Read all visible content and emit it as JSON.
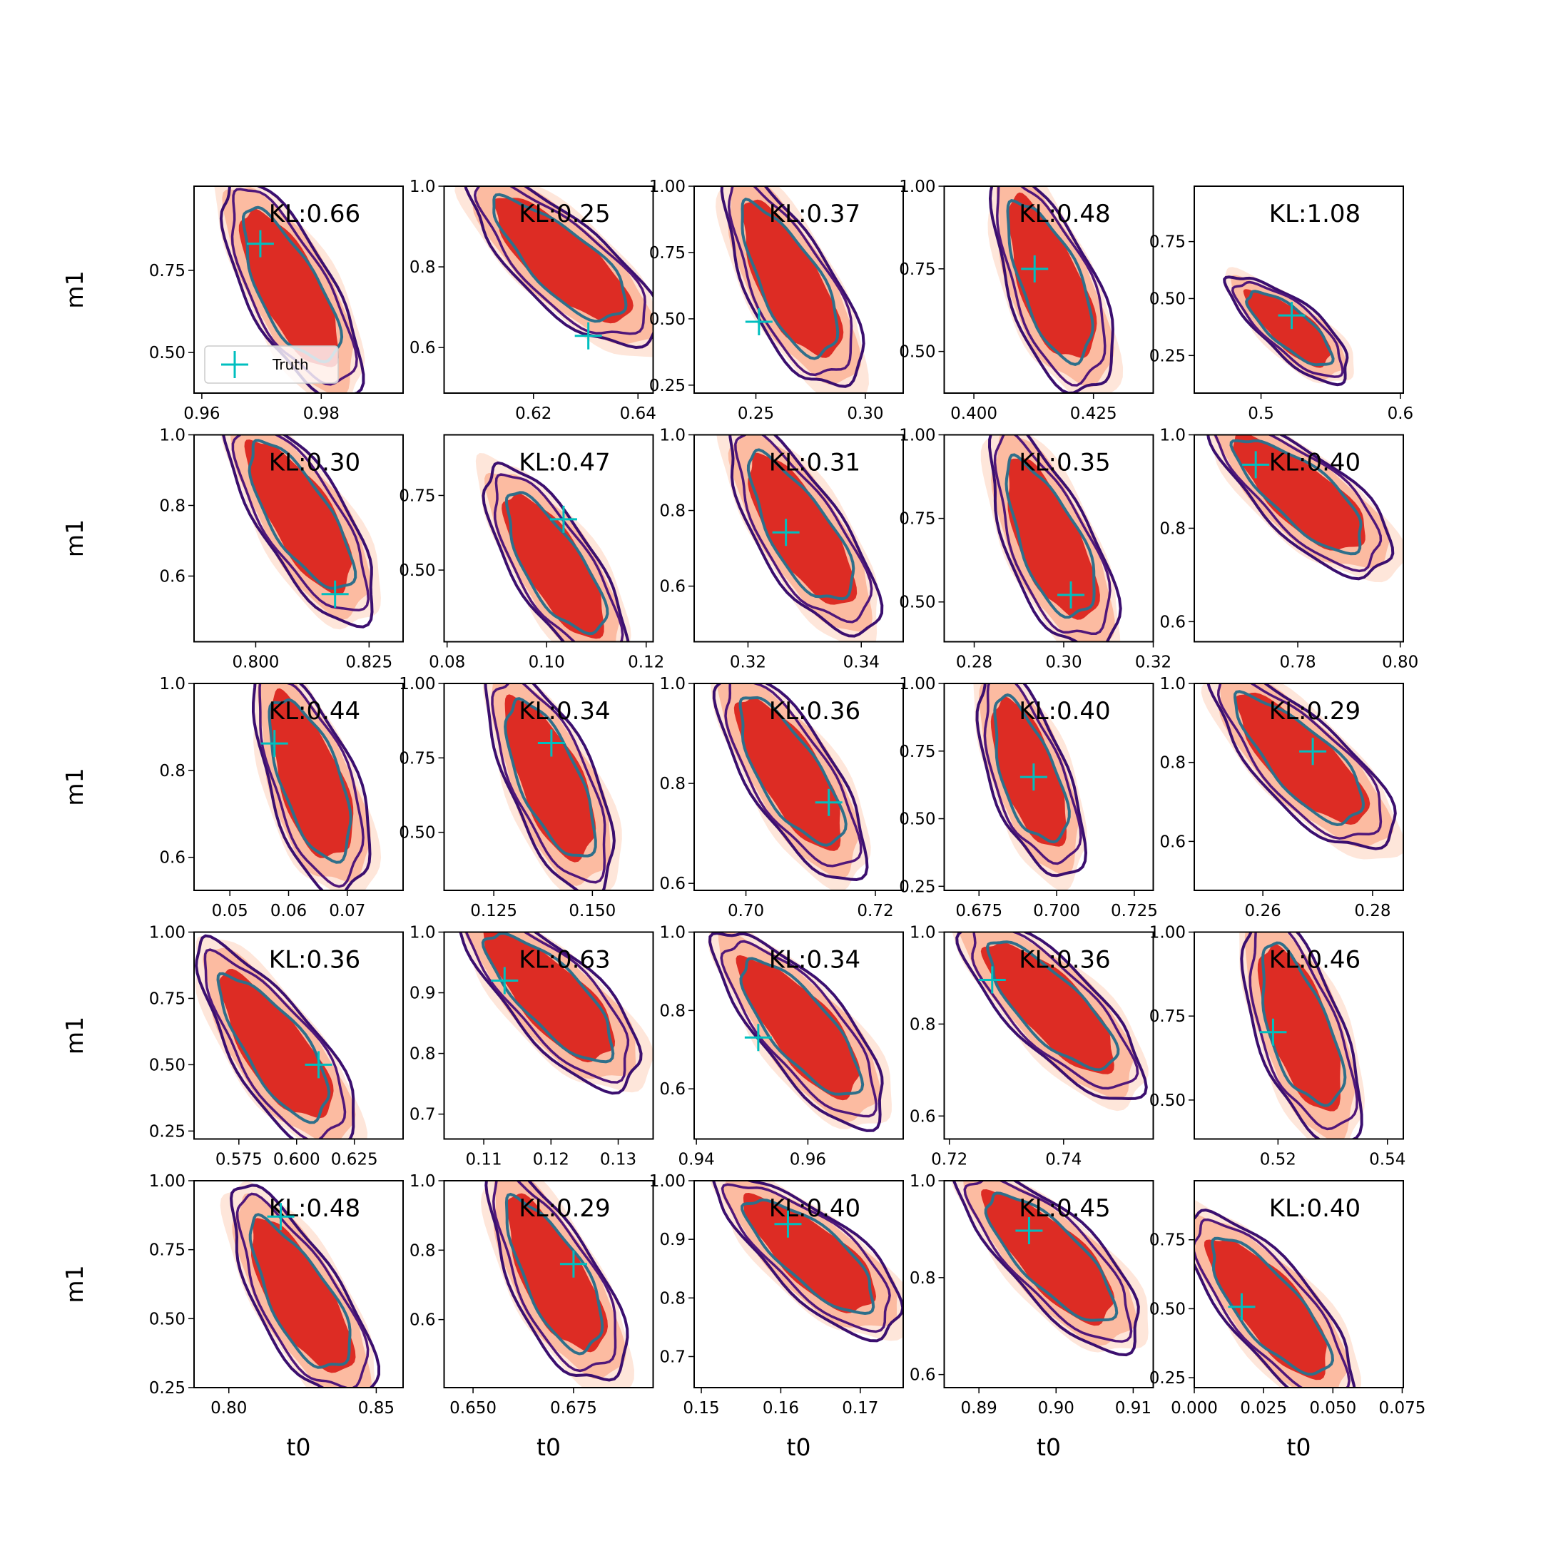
{
  "chart_data": [
    {
      "type": "contour",
      "annotation": "KL:0.66",
      "ylabel": "m1",
      "legend": "lower left",
      "xlim": [
        0.9587,
        0.9937
      ],
      "xticks": [
        0.96,
        0.98
      ],
      "ylim": [
        0.3765,
        1.006
      ],
      "yticks": [
        {
          "value": 0.5,
          "label": "0.50"
        },
        0.75
      ],
      "series": [
        {
          "name": "Truth",
          "color": "#00bfbf",
          "x": [
            0.9698
          ],
          "values": [
            0.831
          ]
        }
      ]
    },
    {
      "type": "contour",
      "annotation": "KL:0.25",
      "xlim": [
        0.6029,
        0.6429
      ],
      "xticks": [
        0.62,
        0.64
      ],
      "ylim": [
        0.487,
        1.0
      ],
      "yticks": [
        0.6,
        0.8,
        {
          "value": 1,
          "label": "1.0"
        }
      ],
      "series": [
        {
          "color": "#00bfbf",
          "x": [
            0.6305
          ],
          "values": [
            0.629
          ]
        }
      ]
    },
    {
      "type": "contour",
      "annotation": "KL:0.37",
      "xlim": [
        0.2218,
        0.3173
      ],
      "xticks": [
        0.25,
        {
          "value": 0.3,
          "label": "0.30"
        }
      ],
      "ylim": [
        0.22,
        1.0
      ],
      "yticks": [
        0.25,
        {
          "value": 0.5,
          "label": "0.50"
        },
        0.75,
        {
          "value": 1,
          "label": "1.00"
        }
      ],
      "series": [
        {
          "color": "#00bfbf",
          "x": [
            0.2514
          ],
          "values": [
            0.489
          ]
        }
      ]
    },
    {
      "type": "contour",
      "annotation": "KL:0.48",
      "xlim": [
        0.3938,
        0.4375
      ],
      "xticks": [
        {
          "value": 0.4,
          "label": "0.400"
        },
        0.425
      ],
      "ylim": [
        0.374,
        1.0
      ],
      "yticks": [
        {
          "value": 0.5,
          "label": "0.50"
        },
        0.75,
        {
          "value": 1,
          "label": "1.00"
        }
      ],
      "series": [
        {
          "color": "#00bfbf",
          "x": [
            0.4127
          ],
          "values": [
            0.75
          ]
        }
      ]
    },
    {
      "type": "contour",
      "annotation": "KL:1.08",
      "xlim": [
        0.4521,
        0.6021
      ],
      "xticks": [
        0.5,
        0.6
      ],
      "ylim": [
        0.085,
        0.993
      ],
      "yticks": [
        0.25,
        {
          "value": 0.5,
          "label": "0.50"
        },
        0.75
      ],
      "series": [
        {
          "color": "#00bfbf",
          "x": [
            0.522
          ],
          "values": [
            0.426
          ]
        }
      ]
    },
    {
      "type": "contour",
      "annotation": "KL:0.30",
      "ylabel": "m1",
      "xlim": [
        0.7864,
        0.8325
      ],
      "xticks": [
        {
          "value": 0.8,
          "label": "0.800"
        },
        0.825
      ],
      "ylim": [
        0.414,
        1.0
      ],
      "yticks": [
        0.6,
        0.8,
        {
          "value": 1,
          "label": "1.0"
        }
      ],
      "series": [
        {
          "color": "#00bfbf",
          "x": [
            0.8175
          ],
          "values": [
            0.549
          ]
        }
      ]
    },
    {
      "type": "contour",
      "annotation": "KL:0.47",
      "xlim": [
        0.0794,
        0.1214
      ],
      "xticks": [
        0.08,
        {
          "value": 0.1,
          "label": "0.10"
        },
        0.12
      ],
      "ylim": [
        0.26,
        0.953
      ],
      "yticks": [
        {
          "value": 0.5,
          "label": "0.50"
        },
        0.75
      ],
      "series": [
        {
          "color": "#00bfbf",
          "x": [
            0.1034
          ],
          "values": [
            0.67
          ]
        }
      ]
    },
    {
      "type": "contour",
      "annotation": "KL:0.31",
      "xlim": [
        0.3105,
        0.3474
      ],
      "xticks": [
        0.32,
        0.34
      ],
      "ylim": [
        0.453,
        1.0
      ],
      "yticks": [
        0.6,
        0.8,
        {
          "value": 1,
          "label": "1.0"
        }
      ],
      "series": [
        {
          "color": "#00bfbf",
          "x": [
            0.3267
          ],
          "values": [
            0.742
          ]
        }
      ]
    },
    {
      "type": "contour",
      "annotation": "KL:0.35",
      "xlim": [
        0.2733,
        0.32
      ],
      "xticks": [
        0.28,
        {
          "value": 0.3,
          "label": "0.30"
        },
        0.32
      ],
      "ylim": [
        0.381,
        1.0
      ],
      "yticks": [
        {
          "value": 0.5,
          "label": "0.50"
        },
        0.75,
        {
          "value": 1,
          "label": "1.00"
        }
      ],
      "series": [
        {
          "color": "#00bfbf",
          "x": [
            0.3016
          ],
          "values": [
            0.521
          ]
        }
      ]
    },
    {
      "type": "contour",
      "annotation": "KL:0.40",
      "xlim": [
        0.7598,
        0.8006
      ],
      "xticks": [
        0.78,
        {
          "value": 0.8,
          "label": "0.80"
        }
      ],
      "ylim": [
        0.557,
        1.0
      ],
      "yticks": [
        0.6,
        0.8,
        {
          "value": 1,
          "label": "1.0"
        }
      ],
      "series": [
        {
          "color": "#00bfbf",
          "x": [
            0.7718
          ],
          "values": [
            0.936
          ]
        }
      ]
    },
    {
      "type": "contour",
      "annotation": "KL:0.44",
      "ylabel": "m1",
      "xlim": [
        0.0439,
        0.0795
      ],
      "xticks": [
        0.05,
        0.06,
        0.07
      ],
      "ylim": [
        0.524,
        1.0
      ],
      "yticks": [
        0.6,
        0.8,
        {
          "value": 1,
          "label": "1.0"
        }
      ],
      "series": [
        {
          "color": "#00bfbf",
          "x": [
            0.0576
          ],
          "values": [
            0.862
          ]
        }
      ]
    },
    {
      "type": "contour",
      "annotation": "KL:0.34",
      "xlim": [
        0.1124,
        0.1654
      ],
      "xticks": [
        0.125,
        {
          "value": 0.15,
          "label": "0.150"
        }
      ],
      "ylim": [
        0.305,
        1.0
      ],
      "yticks": [
        {
          "value": 0.5,
          "label": "0.50"
        },
        0.75,
        {
          "value": 1,
          "label": "1.00"
        }
      ],
      "series": [
        {
          "color": "#00bfbf",
          "x": [
            0.1396
          ],
          "values": [
            0.8
          ]
        }
      ]
    },
    {
      "type": "contour",
      "annotation": "KL:0.36",
      "xlim": [
        0.692,
        0.7243
      ],
      "xticks": [
        {
          "value": 0.7,
          "label": "0.70"
        },
        0.72
      ],
      "ylim": [
        0.586,
        1.0
      ],
      "yticks": [
        0.6,
        0.8,
        {
          "value": 1,
          "label": "1.0"
        }
      ],
      "series": [
        {
          "color": "#00bfbf",
          "x": [
            0.7128
          ],
          "values": [
            0.762
          ]
        }
      ]
    },
    {
      "type": "contour",
      "annotation": "KL:0.40",
      "xlim": [
        0.6638,
        0.7311
      ],
      "xticks": [
        0.675,
        {
          "value": 0.7,
          "label": "0.700"
        },
        0.725
      ],
      "ylim": [
        0.235,
        1.0
      ],
      "yticks": [
        0.25,
        {
          "value": 0.5,
          "label": "0.50"
        },
        0.75,
        {
          "value": 1,
          "label": "1.00"
        }
      ],
      "series": [
        {
          "color": "#00bfbf",
          "x": [
            0.6926
          ],
          "values": [
            0.654
          ]
        }
      ]
    },
    {
      "type": "contour",
      "annotation": "KL:0.29",
      "xlim": [
        0.2475,
        0.2856
      ],
      "xticks": [
        0.26,
        0.28
      ],
      "ylim": [
        0.476,
        1.0
      ],
      "yticks": [
        0.6,
        0.8,
        {
          "value": 1,
          "label": "1.0"
        }
      ],
      "series": [
        {
          "color": "#00bfbf",
          "x": [
            0.2691
          ],
          "values": [
            0.828
          ]
        }
      ]
    },
    {
      "type": "contour",
      "annotation": "KL:0.36",
      "ylabel": "m1",
      "xlim": [
        0.5556,
        0.6461
      ],
      "xticks": [
        0.575,
        {
          "value": 0.6,
          "label": "0.600"
        },
        0.625
      ],
      "ylim": [
        0.22,
        1.0
      ],
      "yticks": [
        0.25,
        {
          "value": 0.5,
          "label": "0.50"
        },
        0.75,
        {
          "value": 1,
          "label": "1.00"
        }
      ],
      "series": [
        {
          "color": "#00bfbf",
          "x": [
            0.6095
          ],
          "values": [
            0.5
          ]
        }
      ]
    },
    {
      "type": "contour",
      "annotation": "KL:0.63",
      "xlim": [
        0.1041,
        0.1352
      ],
      "xticks": [
        0.11,
        0.12,
        0.13
      ],
      "ylim": [
        0.659,
        1.0
      ],
      "yticks": [
        0.7,
        0.8,
        0.9,
        {
          "value": 1,
          "label": "1.0"
        }
      ],
      "series": [
        {
          "color": "#00bfbf",
          "x": [
            0.1131
          ],
          "values": [
            0.92
          ]
        }
      ]
    },
    {
      "type": "contour",
      "annotation": "KL:0.34",
      "xlim": [
        0.9396,
        0.9771
      ],
      "xticks": [
        0.94,
        0.96
      ],
      "ylim": [
        0.472,
        1.0
      ],
      "yticks": [
        0.6,
        0.8,
        {
          "value": 1,
          "label": "1.0"
        }
      ],
      "series": [
        {
          "color": "#00bfbf",
          "x": [
            0.9511
          ],
          "values": [
            0.731
          ]
        }
      ]
    },
    {
      "type": "contour",
      "annotation": "KL:0.36",
      "xlim": [
        0.7191,
        0.7557
      ],
      "xticks": [
        0.72,
        0.74
      ],
      "ylim": [
        0.55,
        1.0
      ],
      "yticks": [
        0.6,
        0.8,
        {
          "value": 1,
          "label": "1.0"
        }
      ],
      "series": [
        {
          "color": "#00bfbf",
          "x": [
            0.7275
          ],
          "values": [
            0.896
          ]
        }
      ]
    },
    {
      "type": "contour",
      "annotation": "KL:0.46",
      "xlim": [
        0.5047,
        0.5429
      ],
      "xticks": [
        0.52,
        0.54
      ],
      "ylim": [
        0.384,
        1.0
      ],
      "yticks": [
        {
          "value": 0.5,
          "label": "0.50"
        },
        0.75,
        {
          "value": 1,
          "label": "1.00"
        }
      ],
      "series": [
        {
          "color": "#00bfbf",
          "x": [
            0.5191
          ],
          "values": [
            0.702
          ]
        }
      ]
    },
    {
      "type": "contour",
      "annotation": "KL:0.48",
      "ylabel": "m1",
      "xlabel": "t0",
      "xlim": [
        0.7882,
        0.8591
      ],
      "xticks": [
        {
          "value": 0.8,
          "label": "0.80"
        },
        0.85
      ],
      "ylim": [
        0.25,
        1.0
      ],
      "yticks": [
        0.25,
        {
          "value": 0.5,
          "label": "0.50"
        },
        0.75,
        {
          "value": 1,
          "label": "1.00"
        }
      ],
      "series": [
        {
          "color": "#00bfbf",
          "x": [
            0.8176
          ],
          "values": [
            0.87
          ]
        }
      ]
    },
    {
      "type": "contour",
      "annotation": "KL:0.29",
      "xlabel": "t0",
      "xlim": [
        0.6428,
        0.6948
      ],
      "xticks": [
        {
          "value": 0.65,
          "label": "0.650"
        },
        0.675
      ],
      "ylim": [
        0.404,
        1.0
      ],
      "yticks": [
        0.6,
        0.8,
        {
          "value": 1,
          "label": "1.0"
        }
      ],
      "series": [
        {
          "color": "#00bfbf",
          "x": [
            0.675
          ],
          "values": [
            0.76
          ]
        }
      ]
    },
    {
      "type": "contour",
      "annotation": "KL:0.40",
      "xlabel": "t0",
      "xlim": [
        0.1491,
        0.1754
      ],
      "xticks": [
        0.15,
        0.16,
        0.17
      ],
      "ylim": [
        0.647,
        1.0
      ],
      "yticks": [
        0.7,
        0.8,
        0.9,
        {
          "value": 1,
          "label": "1.00"
        }
      ],
      "series": [
        {
          "color": "#00bfbf",
          "x": [
            0.1609
          ],
          "values": [
            0.926
          ]
        }
      ]
    },
    {
      "type": "contour",
      "annotation": "KL:0.45",
      "xlabel": "t0",
      "xlim": [
        0.8855,
        0.9126
      ],
      "xticks": [
        0.89,
        {
          "value": 0.9,
          "label": "0.90"
        },
        0.91
      ],
      "ylim": [
        0.573,
        1.0
      ],
      "yticks": [
        0.6,
        0.8,
        {
          "value": 1,
          "label": "1.0"
        }
      ],
      "series": [
        {
          "color": "#00bfbf",
          "x": [
            0.8965
          ],
          "values": [
            0.897
          ]
        }
      ]
    },
    {
      "type": "contour",
      "annotation": "KL:0.40",
      "xlabel": "t0",
      "xlim": [
        0.0,
        0.0754
      ],
      "xticks": [
        {
          "value": 0,
          "label": "0.000"
        },
        0.025,
        {
          "value": 0.05,
          "label": "0.050"
        },
        0.075
      ],
      "ylim": [
        0.214,
        0.964
      ],
      "yticks": [
        0.25,
        {
          "value": 0.5,
          "label": "0.50"
        },
        0.75
      ],
      "series": [
        {
          "color": "#00bfbf",
          "x": [
            0.0171
          ],
          "values": [
            0.507
          ]
        }
      ]
    }
  ]
}
